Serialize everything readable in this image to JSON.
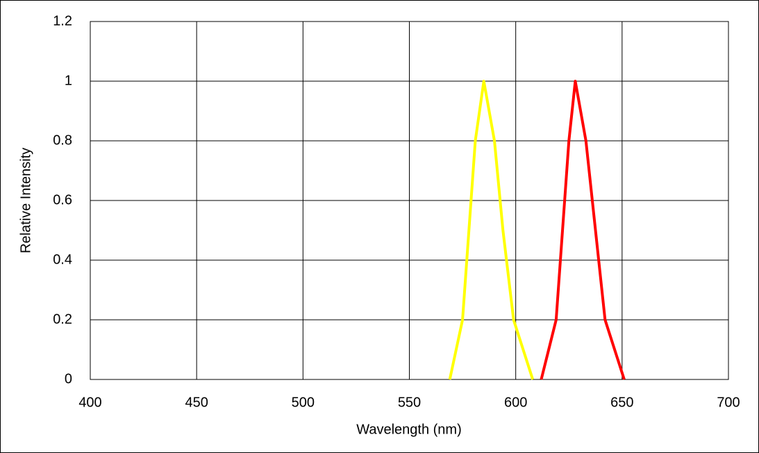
{
  "chart_data": {
    "type": "line",
    "xlabel": "Wavelength (nm)",
    "ylabel": "Relative Intensity",
    "series": [
      {
        "color": "#ffff00",
        "x": [
          569,
          575,
          578,
          581,
          585,
          590,
          594,
          599,
          608
        ],
        "values": [
          0,
          0.2,
          0.5,
          0.8,
          1,
          0.8,
          0.5,
          0.2,
          0
        ]
      },
      {
        "color": "#ff0000",
        "x": [
          612,
          619,
          622,
          625,
          628,
          633,
          636,
          642,
          651
        ],
        "values": [
          0,
          0.2,
          0.5,
          0.8,
          1,
          0.8,
          0.6,
          0.2,
          0
        ]
      }
    ],
    "xlim": [
      400,
      700
    ],
    "xticks": [
      400,
      450,
      500,
      550,
      600,
      650,
      700
    ],
    "ylim": [
      0,
      1.2
    ],
    "yticks": [
      0,
      0.2,
      0.4,
      0.6,
      0.8,
      1,
      1.2
    ],
    "grid": true
  }
}
